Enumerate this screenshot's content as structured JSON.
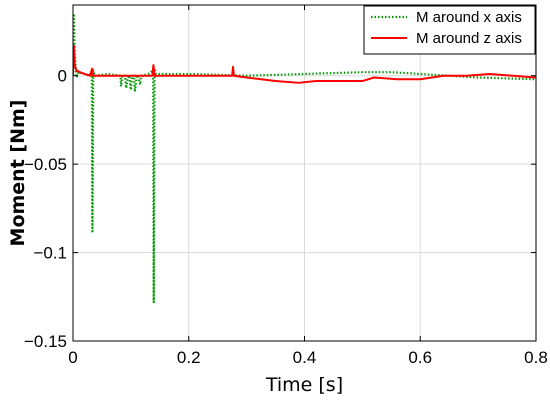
{
  "chart_data": {
    "type": "line",
    "xlabel": "Time [s]",
    "ylabel": "Moment [Nm]",
    "xlim": [
      0,
      0.8
    ],
    "ylim": [
      -0.15,
      0.04
    ],
    "x_ticks": [
      0,
      0.2,
      0.4,
      0.6,
      0.8
    ],
    "x_tick_labels": [
      "0",
      "0.2",
      "0.4",
      "0.6",
      "0.8"
    ],
    "y_ticks": [
      -0.15,
      -0.1,
      -0.05,
      0
    ],
    "y_tick_labels": [
      "−0.15",
      "−0.1",
      "−0.05",
      "0"
    ],
    "grid": true,
    "legend_position": "top-right",
    "series": [
      {
        "name": "M around x axis",
        "color": "#009900",
        "style": "dotted",
        "x": [
          0,
          0.0015,
          0.003,
          0.006,
          0.01,
          0.02,
          0.028,
          0.0325,
          0.0335,
          0.035,
          0.037,
          0.06,
          0.082,
          0.083,
          0.085,
          0.09,
          0.092,
          0.095,
          0.097,
          0.1,
          0.102,
          0.105,
          0.107,
          0.11,
          0.112,
          0.116,
          0.118,
          0.12,
          0.13,
          0.1385,
          0.1395,
          0.141,
          0.143,
          0.16,
          0.2,
          0.3,
          0.4,
          0.5,
          0.55,
          0.6,
          0.7,
          0.8
        ],
        "y": [
          0.0,
          0.035,
          0.012,
          -0.001,
          0.002,
          0.001,
          0.0,
          0.003,
          -0.088,
          0.003,
          0.0,
          0.001,
          0.0,
          -0.006,
          0.0,
          0.0,
          -0.007,
          0.0,
          0.0,
          -0.008,
          0.0,
          0.0,
          -0.009,
          0.0,
          0.0,
          -0.005,
          0.0,
          0.0,
          0.001,
          0.003,
          -0.128,
          0.004,
          0.001,
          0.001,
          0.001,
          0.0,
          0.001,
          0.002,
          0.002,
          0.001,
          -0.001,
          -0.002
        ]
      },
      {
        "name": "M around z axis",
        "color": "#ff0000",
        "style": "solid",
        "x": [
          0,
          0.0015,
          0.003,
          0.006,
          0.012,
          0.02,
          0.03,
          0.033,
          0.0345,
          0.036,
          0.06,
          0.1,
          0.137,
          0.139,
          0.141,
          0.16,
          0.2,
          0.26,
          0.275,
          0.2765,
          0.278,
          0.3,
          0.35,
          0.39,
          0.42,
          0.46,
          0.5,
          0.52,
          0.56,
          0.6,
          0.64,
          0.68,
          0.72,
          0.76,
          0.8
        ],
        "y": [
          0.0,
          0.017,
          0.006,
          0.003,
          0.002,
          0.001,
          0.0,
          0.004,
          0.0,
          0.0,
          0.0,
          0.0,
          0.0,
          0.006,
          0.0,
          0.0,
          0.0,
          0.0,
          0.0,
          0.005,
          0.0,
          -0.001,
          -0.003,
          -0.004,
          -0.003,
          -0.003,
          -0.003,
          -0.001,
          -0.002,
          -0.002,
          0.0,
          0.0,
          0.001,
          0.0,
          -0.001
        ]
      }
    ]
  }
}
